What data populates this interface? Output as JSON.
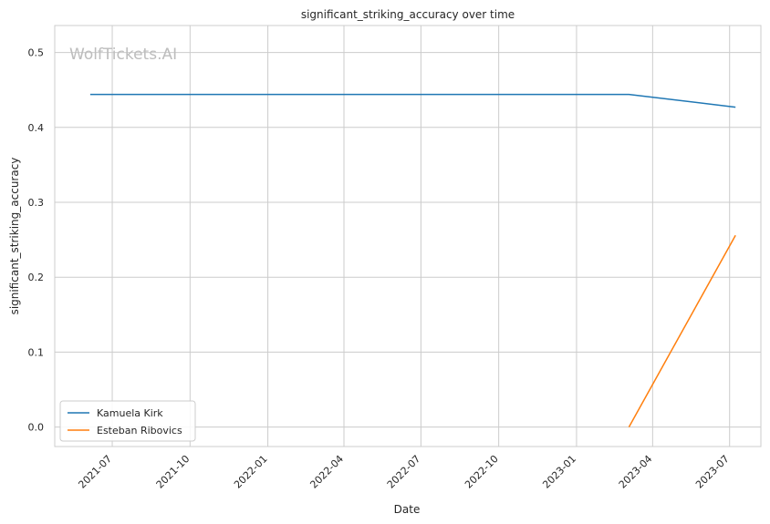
{
  "watermark": "WolfTickets.AI",
  "chart_data": {
    "type": "line",
    "title": "significant_striking_accuracy over time",
    "xlabel": "Date",
    "ylabel": "significant_striking_accuracy",
    "x_axis_type": "date",
    "xlim": [
      "2021-04-24",
      "2023-08-07"
    ],
    "ylim": [
      -0.026,
      0.536
    ],
    "x_ticks": [
      "2021-07",
      "2021-10",
      "2022-01",
      "2022-04",
      "2022-07",
      "2022-10",
      "2023-01",
      "2023-04",
      "2023-07"
    ],
    "y_ticks": [
      0.0,
      0.1,
      0.2,
      0.3,
      0.4,
      0.5
    ],
    "y_tick_labels": [
      "0.0",
      "0.1",
      "0.2",
      "0.3",
      "0.4",
      "0.5"
    ],
    "grid": true,
    "legend_position": "lower-left",
    "series": [
      {
        "name": "Kamuela Kirk",
        "color": "#1f77b4",
        "points": [
          {
            "x": "2021-06-05",
            "y": 0.444
          },
          {
            "x": "2023-03-04",
            "y": 0.444
          },
          {
            "x": "2023-07-08",
            "y": 0.427
          }
        ]
      },
      {
        "name": "Esteban Ribovics",
        "color": "#ff7f0e",
        "points": [
          {
            "x": "2023-03-04",
            "y": 0.0
          },
          {
            "x": "2023-07-08",
            "y": 0.256
          }
        ]
      }
    ]
  }
}
